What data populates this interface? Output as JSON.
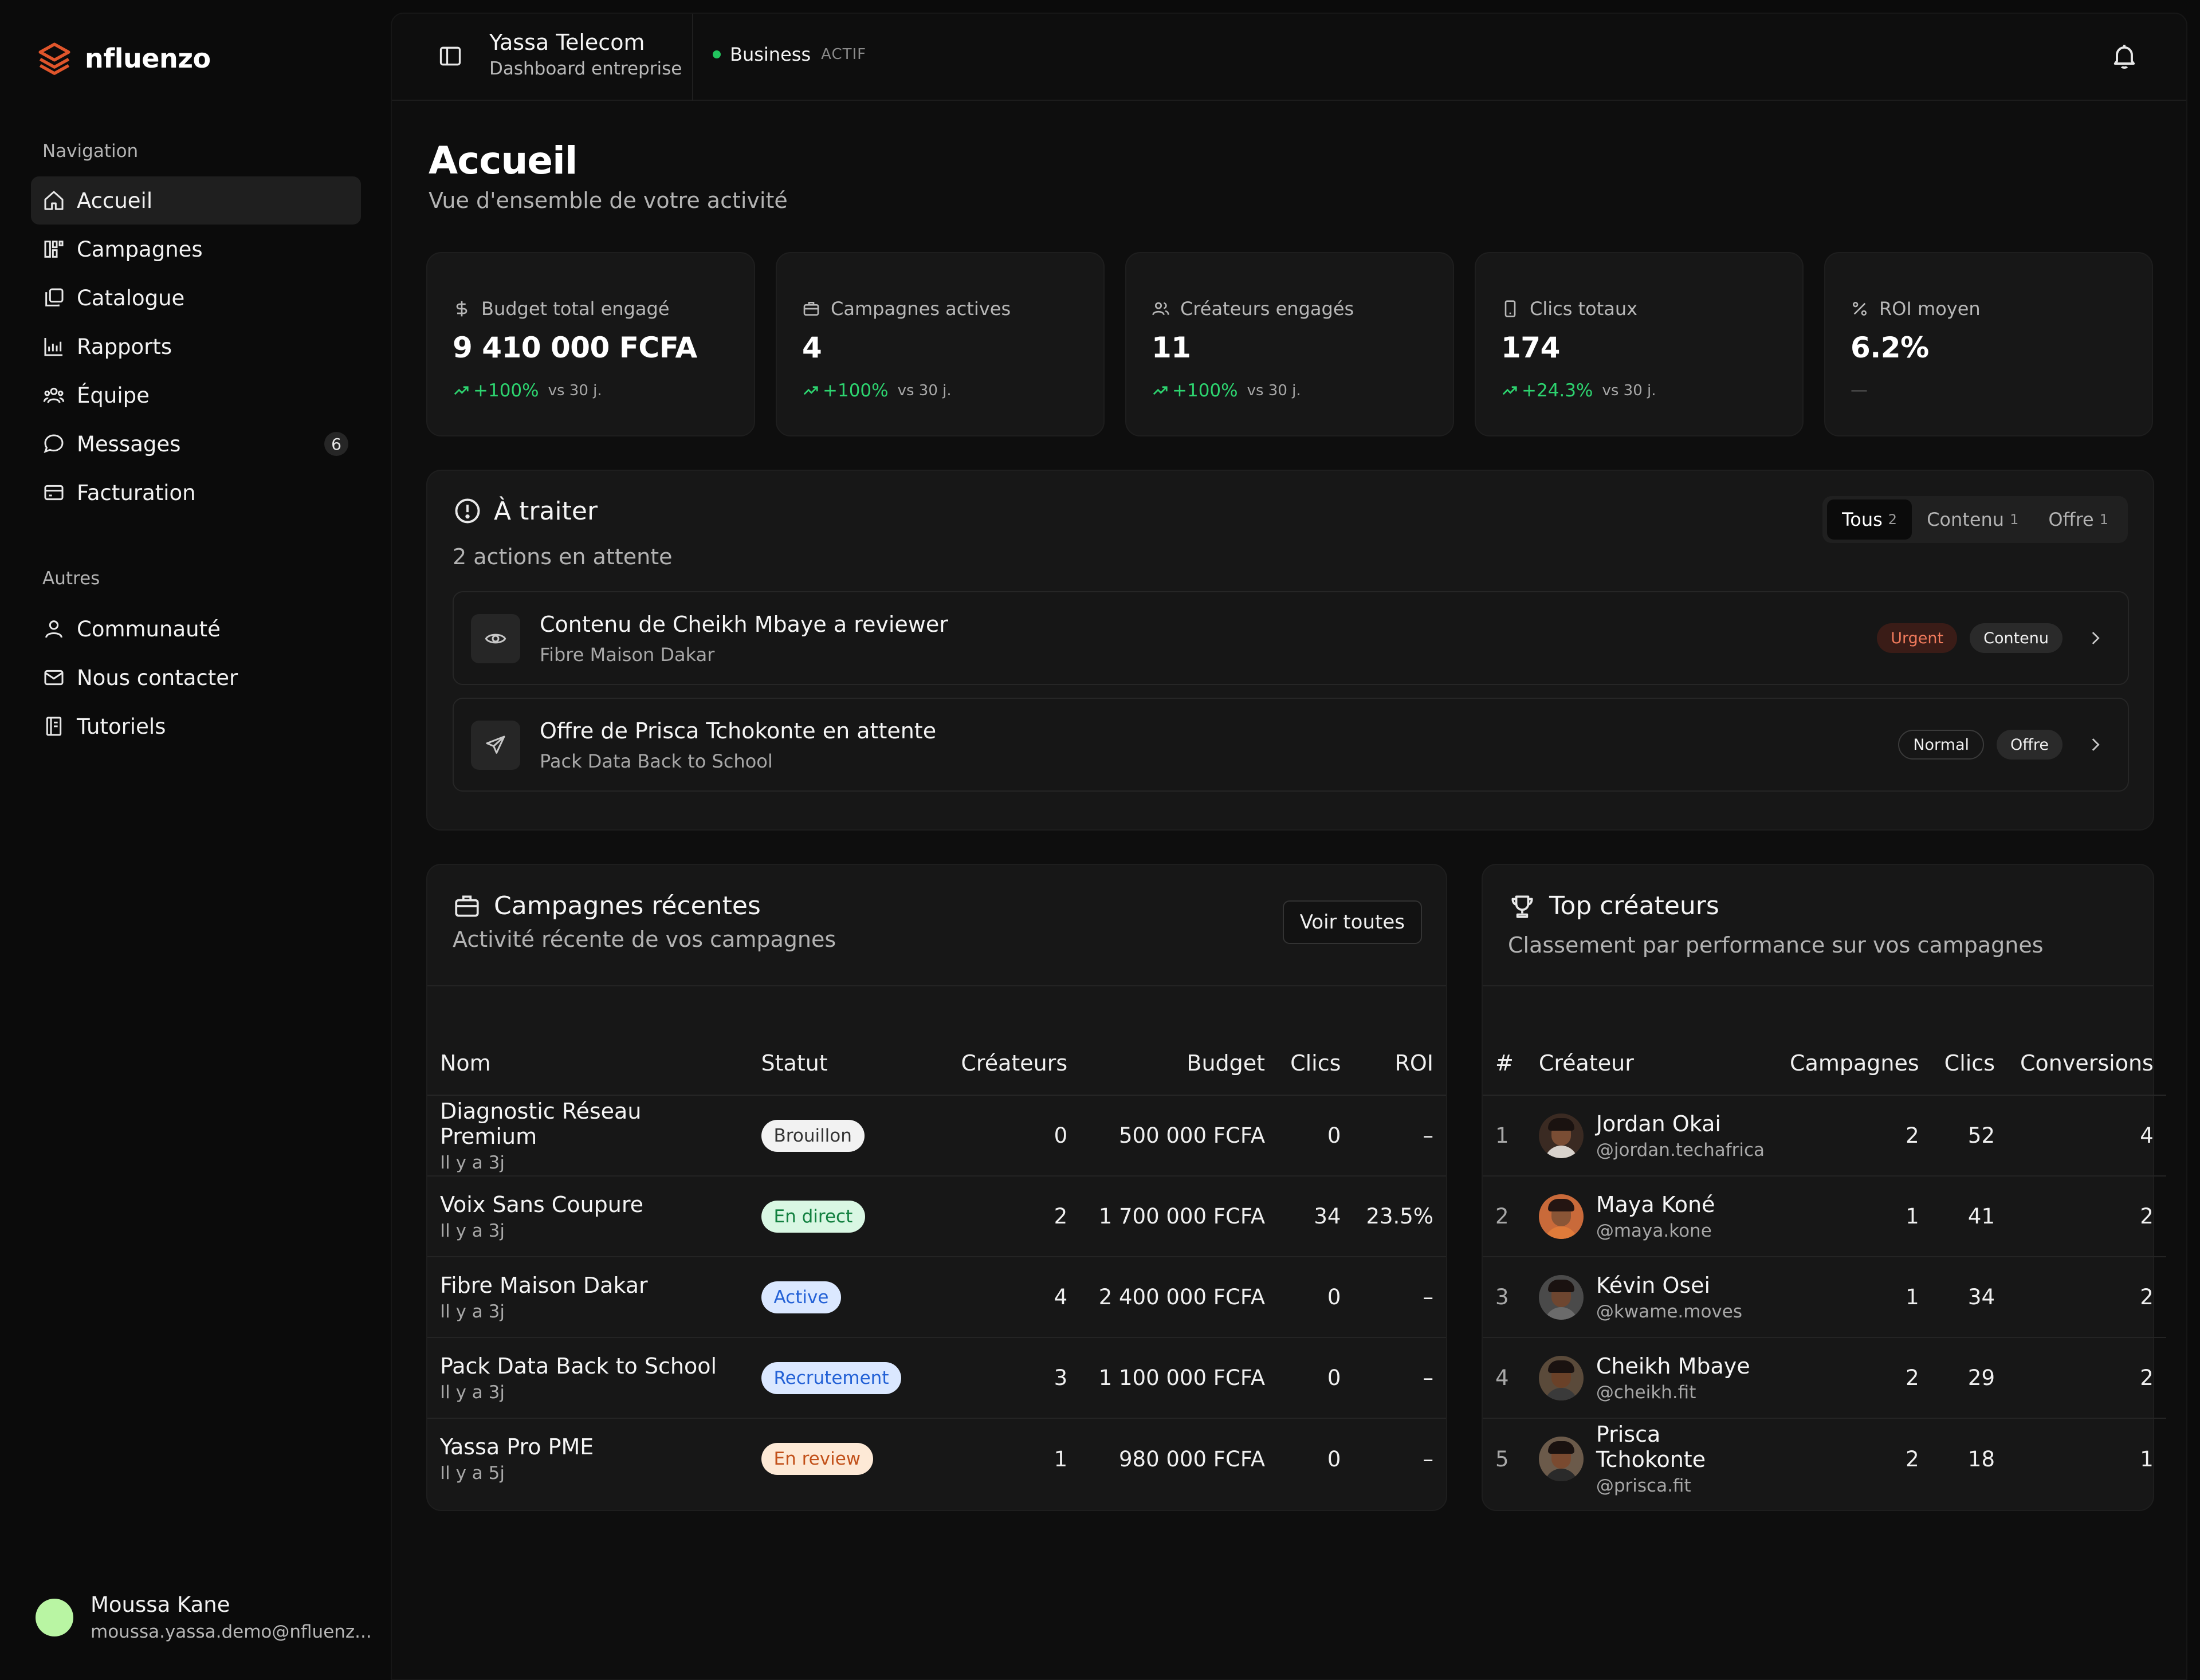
{
  "brand": {
    "name": "nfluenzo",
    "logo_color": "#e0552b"
  },
  "sidebar": {
    "nav_title": "Navigation",
    "items": [
      {
        "label": "Accueil",
        "icon": "home-icon",
        "active": true
      },
      {
        "label": "Campagnes",
        "icon": "campaigns-icon"
      },
      {
        "label": "Catalogue",
        "icon": "catalog-icon"
      },
      {
        "label": "Rapports",
        "icon": "reports-icon"
      },
      {
        "label": "Équipe",
        "icon": "team-icon"
      },
      {
        "label": "Messages",
        "icon": "message-icon",
        "badge": "6"
      },
      {
        "label": "Facturation",
        "icon": "billing-icon"
      }
    ],
    "others_title": "Autres",
    "others": [
      {
        "label": "Communauté",
        "icon": "user-icon"
      },
      {
        "label": "Nous contacter",
        "icon": "mail-icon"
      },
      {
        "label": "Tutoriels",
        "icon": "book-icon"
      }
    ],
    "user": {
      "name": "Moussa Kane",
      "email": "moussa.yassa.demo@nfluenz...",
      "avatar_color": "#b9f5a3"
    }
  },
  "topbar": {
    "company": "Yassa Telecom",
    "company_sub": "Dashboard entreprise",
    "plan": "Business",
    "plan_status": "ACTIF",
    "status_color": "#22c55e"
  },
  "page": {
    "title": "Accueil",
    "subtitle": "Vue d'ensemble de votre activité"
  },
  "stats": [
    {
      "label": "Budget total engagé",
      "icon": "dollar-icon",
      "value": "9 410 000 FCFA",
      "trend": "+100%",
      "note": "vs 30 j."
    },
    {
      "label": "Campagnes actives",
      "icon": "briefcase-icon",
      "value": "4",
      "trend": "+100%",
      "note": "vs 30 j."
    },
    {
      "label": "Créateurs engagés",
      "icon": "users-icon",
      "value": "11",
      "trend": "+100%",
      "note": "vs 30 j."
    },
    {
      "label": "Clics totaux",
      "icon": "phone-icon",
      "value": "174",
      "trend": "+24.3%",
      "note": "vs 30 j."
    },
    {
      "label": "ROI moyen",
      "icon": "percent-icon",
      "value": "6.2%",
      "trend": "",
      "note": "—"
    }
  ],
  "todo": {
    "title": "À traiter",
    "subtitle": "2 actions en attente",
    "filters": [
      {
        "label": "Tous",
        "count": "2",
        "active": true
      },
      {
        "label": "Contenu",
        "count": "1"
      },
      {
        "label": "Offre",
        "count": "1"
      }
    ],
    "items": [
      {
        "title": "Contenu de Cheikh Mbaye a reviewer",
        "sub": "Fibre Maison Dakar",
        "icon": "eye-icon",
        "priority": "Urgent",
        "type": "Contenu"
      },
      {
        "title": "Offre de Prisca Tchokonte en attente",
        "sub": "Pack Data Back to School",
        "icon": "send-icon",
        "priority": "Normal",
        "type": "Offre"
      }
    ]
  },
  "campaigns": {
    "title": "Campagnes récentes",
    "subtitle": "Activité récente de vos campagnes",
    "button": "Voir toutes",
    "columns": [
      "Nom",
      "Statut",
      "Créateurs",
      "Budget",
      "Clics",
      "ROI"
    ],
    "rows": [
      {
        "name": "Diagnostic Réseau Premium",
        "when": "Il y a 3j",
        "status": "Brouillon",
        "status_kind": "draft",
        "creators": "0",
        "budget": "500 000 FCFA",
        "clicks": "0",
        "roi": "–"
      },
      {
        "name": "Voix Sans Coupure",
        "when": "Il y a 3j",
        "status": "En direct",
        "status_kind": "live",
        "creators": "2",
        "budget": "1 700 000 FCFA",
        "clicks": "34",
        "roi": "23.5%"
      },
      {
        "name": "Fibre Maison Dakar",
        "when": "Il y a 3j",
        "status": "Active",
        "status_kind": "active",
        "creators": "4",
        "budget": "2 400 000 FCFA",
        "clicks": "0",
        "roi": "–"
      },
      {
        "name": "Pack Data Back to School",
        "when": "Il y a 3j",
        "status": "Recrutement",
        "status_kind": "recruit",
        "creators": "3",
        "budget": "1 100 000 FCFA",
        "clicks": "0",
        "roi": "–"
      },
      {
        "name": "Yassa Pro PME",
        "when": "Il y a 5j",
        "status": "En review",
        "status_kind": "review",
        "creators": "1",
        "budget": "980 000 FCFA",
        "clicks": "0",
        "roi": "–"
      }
    ]
  },
  "creators": {
    "title": "Top créateurs",
    "subtitle": "Classement par performance sur vos campagnes",
    "columns": [
      "#",
      "Créateur",
      "Campagnes",
      "Clics",
      "Conversions"
    ],
    "rows": [
      {
        "rank": "1",
        "name": "Jordan Okai",
        "handle": "@jordan.techafrica",
        "campaigns": "2",
        "clicks": "52",
        "conversions": "4"
      },
      {
        "rank": "2",
        "name": "Maya Koné",
        "handle": "@maya.kone",
        "campaigns": "1",
        "clicks": "41",
        "conversions": "2"
      },
      {
        "rank": "3",
        "name": "Kévin Osei",
        "handle": "@kwame.moves",
        "campaigns": "1",
        "clicks": "34",
        "conversions": "2"
      },
      {
        "rank": "4",
        "name": "Cheikh Mbaye",
        "handle": "@cheikh.fit",
        "campaigns": "2",
        "clicks": "29",
        "conversions": "2"
      },
      {
        "rank": "5",
        "name": "Prisca Tchokonte",
        "handle": "@prisca.fit",
        "campaigns": "2",
        "clicks": "18",
        "conversions": "1"
      }
    ]
  }
}
